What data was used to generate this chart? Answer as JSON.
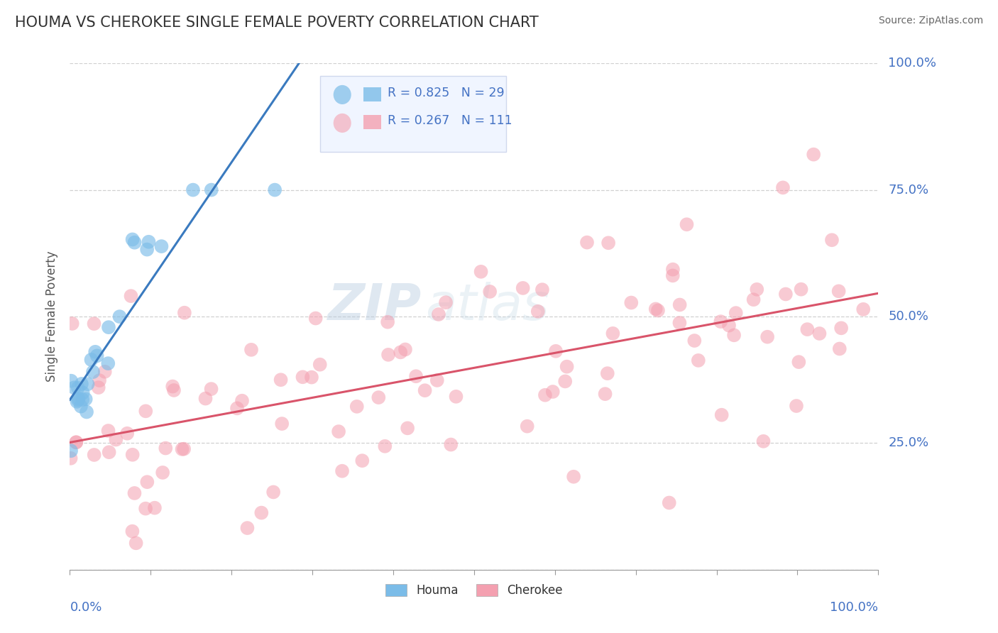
{
  "title": "HOUMA VS CHEROKEE SINGLE FEMALE POVERTY CORRELATION CHART",
  "source": "Source: ZipAtlas.com",
  "ylabel": "Single Female Poverty",
  "houma_R": 0.825,
  "houma_N": 29,
  "cherokee_R": 0.267,
  "cherokee_N": 111,
  "houma_color": "#7bbce8",
  "cherokee_color": "#f4a0b0",
  "houma_line_color": "#3a7abf",
  "cherokee_line_color": "#d9546a",
  "background_color": "#ffffff",
  "grid_color": "#cccccc",
  "axis_label_color": "#4472c4",
  "title_color": "#333333",
  "watermark_zip": "ZIP",
  "watermark_atlas": "atlas",
  "legend_bg": "#f0f5ff",
  "legend_edge": "#d0d8ee"
}
